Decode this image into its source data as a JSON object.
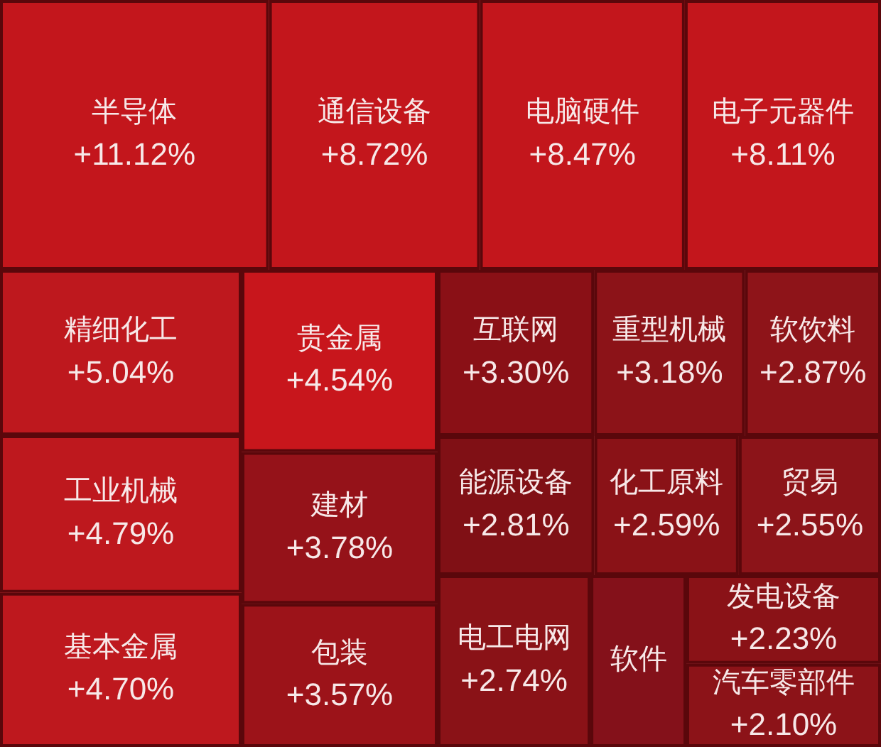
{
  "chart_data": {
    "type": "other",
    "categories": [
      "半导体",
      "通信设备",
      "电脑硬件",
      "电子元器件",
      "精细化工",
      "工业机械",
      "基本金属",
      "贵金属",
      "建材",
      "包装",
      "互联网",
      "重型机械",
      "软饮料",
      "能源设备",
      "化工原料",
      "贸易",
      "电工电网",
      "软件",
      "发电设备",
      "汽车零部件"
    ],
    "values": [
      11.12,
      8.72,
      8.47,
      8.11,
      5.04,
      4.79,
      4.7,
      4.54,
      3.78,
      3.57,
      3.3,
      3.18,
      2.87,
      2.81,
      2.59,
      2.55,
      2.74,
      null,
      2.23,
      2.1
    ],
    "value_labels": [
      "+11.12%",
      "+8.72%",
      "+8.47%",
      "+8.11%",
      "+5.04%",
      "+4.79%",
      "+4.70%",
      "+4.54%",
      "+3.78%",
      "+3.57%",
      "+3.30%",
      "+3.18%",
      "+2.87%",
      "+2.81%",
      "+2.59%",
      "+2.55%",
      "+2.74%",
      null,
      "+2.23%",
      "+2.10%"
    ],
    "colors": [
      "#c3161c",
      "#c3161c",
      "#c3161c",
      "#c3161c",
      "#be181e",
      "#be181e",
      "#be181e",
      "#c8161c",
      "#951219",
      "#9c1319",
      "#8a1016",
      "#8c1318",
      "#8e1419",
      "#801015",
      "#8a1217",
      "#8c1419",
      "#8a1217",
      "#84111a",
      "#8a1217",
      "#8c1318"
    ]
  }
}
